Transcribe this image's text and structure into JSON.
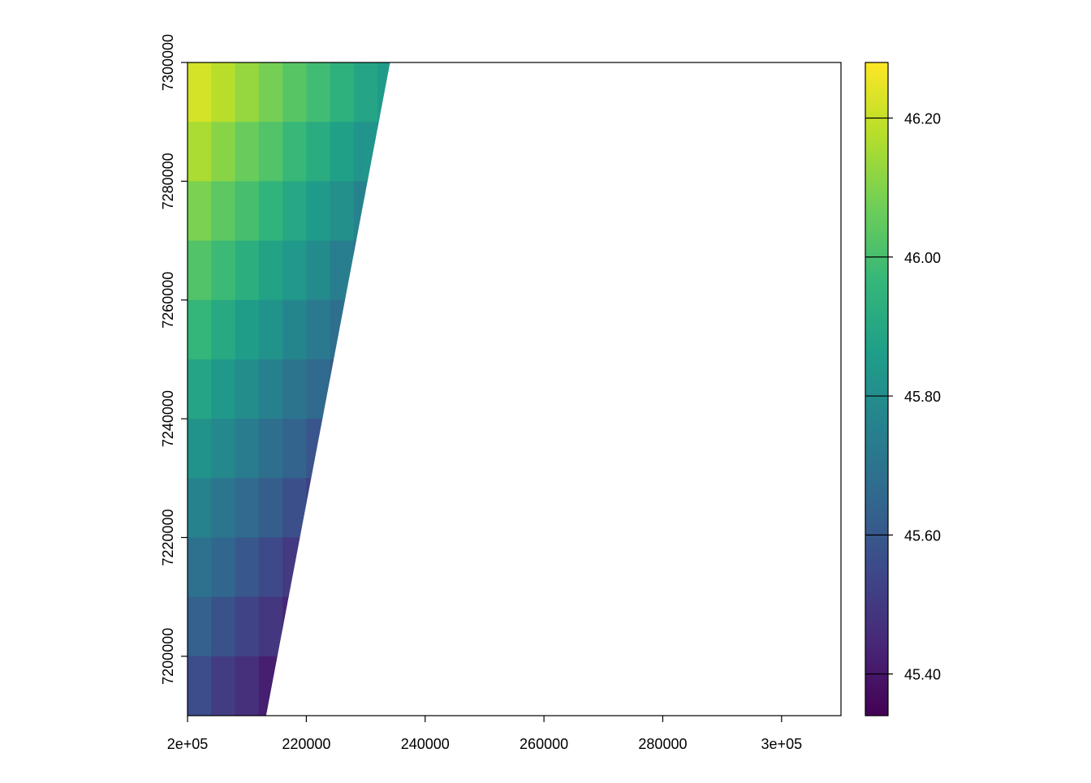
{
  "chart_data": {
    "type": "raster",
    "xlim": [
      200000,
      310000
    ],
    "ylim": [
      7190000,
      7300000
    ],
    "xticks": [
      {
        "value": 200000,
        "label": "2e+05"
      },
      220000,
      240000,
      260000,
      280000,
      {
        "value": 300000,
        "label": "3e+05"
      }
    ],
    "yticks": [
      7200000,
      7220000,
      7240000,
      7260000,
      7280000,
      7300000
    ],
    "outline": [
      [
        200000,
        7300000
      ],
      [
        234100,
        7300000
      ],
      [
        213230,
        7190000
      ],
      [
        200000,
        7190000
      ]
    ],
    "raster": {
      "x": [
        202000,
        206000,
        210000,
        214000,
        218000,
        222000,
        226000,
        230000,
        234000
      ],
      "y": [
        7295000,
        7285000,
        7275000,
        7265000,
        7255000,
        7245000,
        7235000,
        7225000,
        7215000,
        7205000,
        7195000
      ],
      "values": [
        [
          46.22,
          46.18,
          46.13,
          46.08,
          46.03,
          45.99,
          45.94,
          45.89,
          45.85
        ],
        [
          46.16,
          46.11,
          46.06,
          46.02,
          45.97,
          45.92,
          45.87,
          45.83,
          45.78
        ],
        [
          46.09,
          46.04,
          46.0,
          45.95,
          45.9,
          45.85,
          45.81,
          45.76,
          null
        ],
        [
          46.02,
          45.98,
          45.93,
          45.88,
          45.84,
          45.79,
          45.74,
          45.69,
          null
        ],
        [
          45.96,
          45.91,
          45.86,
          45.82,
          45.77,
          45.72,
          45.68,
          null,
          null
        ],
        [
          45.89,
          45.84,
          45.8,
          45.75,
          45.7,
          45.66,
          45.61,
          null,
          null
        ],
        [
          45.82,
          45.78,
          45.73,
          45.68,
          45.64,
          45.59,
          null,
          null,
          null
        ],
        [
          45.76,
          45.71,
          45.66,
          45.62,
          45.57,
          45.52,
          null,
          null,
          null
        ],
        [
          45.69,
          45.65,
          45.6,
          45.55,
          45.5,
          null,
          null,
          null,
          null
        ],
        [
          45.63,
          45.58,
          45.53,
          45.49,
          45.44,
          null,
          null,
          null,
          null
        ],
        [
          45.56,
          45.51,
          45.47,
          45.42,
          null,
          null,
          null,
          null,
          null
        ]
      ]
    },
    "colorbar": {
      "clim": [
        45.34,
        46.28
      ],
      "ticks": [
        {
          "value": 45.4,
          "label": "45.40"
        },
        {
          "value": 45.6,
          "label": "45.60"
        },
        {
          "value": 45.8,
          "label": "45.80"
        },
        {
          "value": 46.0,
          "label": "46.00"
        },
        {
          "value": 46.2,
          "label": "46.20"
        }
      ]
    },
    "colormap": [
      "#440154",
      "#482878",
      "#3e4989",
      "#31688e",
      "#26828e",
      "#1f9e89",
      "#35b779",
      "#6ece58",
      "#b5de2b",
      "#fde725"
    ]
  }
}
